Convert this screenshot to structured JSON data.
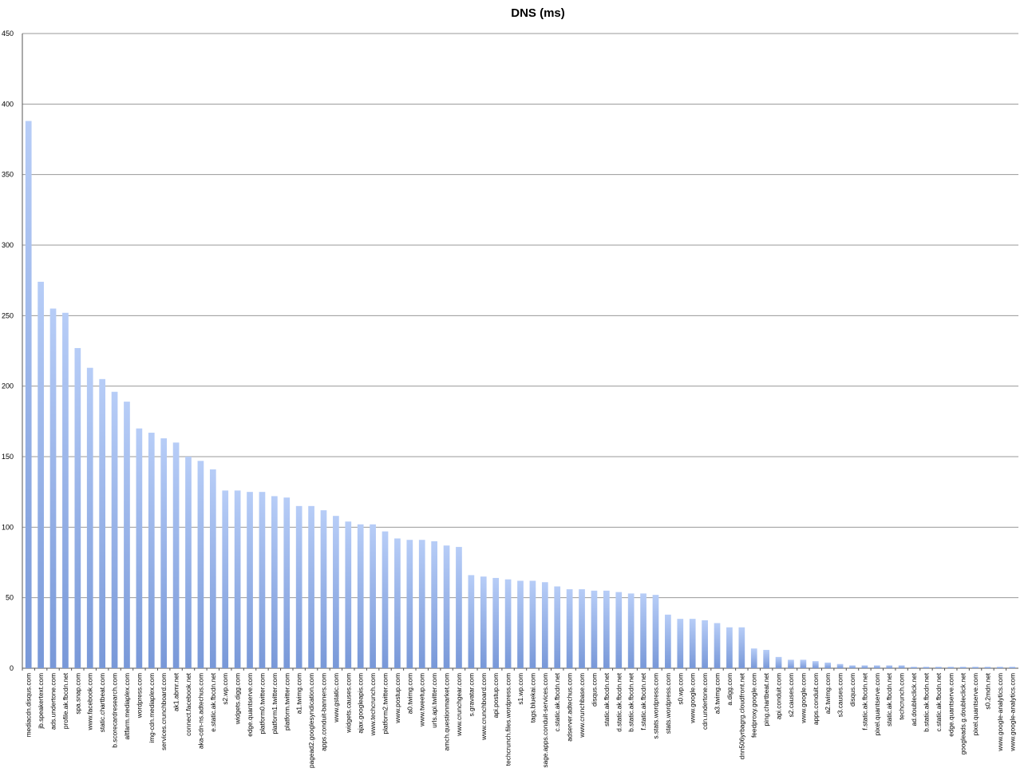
{
  "chart_data": {
    "type": "bar",
    "title": "DNS (ms)",
    "xlabel": "",
    "ylabel": "",
    "ylim": [
      0,
      450
    ],
    "yticks": [
      0,
      50,
      100,
      150,
      200,
      250,
      300,
      350,
      400,
      450
    ],
    "grid": true,
    "legend": "none",
    "bar_color_top": "#b7cdf7",
    "bar_color_bottom": "#7898d8",
    "grid_color": "#9a9a9a",
    "categories": [
      "mediacdn.disqus.com",
      "jb.speakertext.com",
      "ads.undertone.com",
      "profile.ak.fbcdn.net",
      "spa.snap.com",
      "www.facebook.com",
      "static.chartbeat.com",
      "b.scorecardresearch.com",
      "altfarm.mediaplex.com",
      "wordpress.com",
      "img-cdn.mediaplex.com",
      "services.crunchboard.com",
      "ak1.abmr.net",
      "connect.facebook.net",
      "aka-cdn-ns.adtechus.com",
      "e.static.ak.fbcdn.net",
      "s2.wp.com",
      "widgets.digg.com",
      "edge.quantserve.com",
      "platform0.twitter.com",
      "platform1.twitter.com",
      "platform.twitter.com",
      "a1.twimg.com",
      "pagead2.googlesyndication.com",
      "apps.conduit-banners.com",
      "www.gstatic.com",
      "widgets.causes.com",
      "ajax.googleapis.com",
      "www.techcrunch.com",
      "platform2.twitter.com",
      "www.postup.com",
      "a0.twimg.com",
      "www.tweetup.com",
      "urls.api.twitter.com",
      "amch.questionmarket.com",
      "www.crunchgear.com",
      "s.gravatar.com",
      "www.crunchboard.com",
      "api.postup.com",
      "techcrunch.files.wordpress.com",
      "s1.wp.com",
      "tags.bluekai.com",
      "sage.apps.conduit-services.com",
      "c.static.ak.fbcdn.net",
      "adserver.adtechus.com",
      "www.crunchbase.com",
      "disqus.com",
      "static.ak.fbcdn.net",
      "d.static.ak.fbcdn.net",
      "b.static.ak.fbcdn.net",
      "f.static.ak.fbcdn.net",
      "s.stats.wordpress.com",
      "stats.wordpress.com",
      "s0.wp.com",
      "www.google.com",
      "cdn.undertone.com",
      "a3.twimg.com",
      "a.digg.com",
      "dnn506yrbagrg.cloudfront.net",
      "feedproxy.google.com",
      "ping.chartbeat.net",
      "api.conduit.com",
      "s2.causes.com",
      "www.google.com",
      "apps.conduit.com",
      "a2.twimg.com",
      "s3.causes.com",
      "disqus.com",
      "f.static.ak.fbcdn.net",
      "pixel.quantserve.com",
      "static.ak.fbcdn.net",
      "techcrunch.com",
      "ad.doubleclick.net",
      "b.static.ak.fbcdn.net",
      "c.static.ak.fbcdn.net",
      "edge.quantserve.com",
      "googleads.g.doubleclick.net",
      "pixel.quantserve.com",
      "s0.2mdn.net",
      "www.google-analytics.com",
      "www.google-analytics.com"
    ],
    "values": [
      388,
      274,
      255,
      252,
      227,
      213,
      205,
      196,
      189,
      170,
      167,
      163,
      160,
      150,
      147,
      141,
      126,
      126,
      125,
      125,
      122,
      121,
      115,
      115,
      112,
      108,
      104,
      102,
      102,
      97,
      92,
      91,
      91,
      90,
      87,
      86,
      66,
      65,
      64,
      63,
      62,
      62,
      61,
      58,
      56,
      56,
      55,
      55,
      54,
      53,
      53,
      52,
      38,
      35,
      35,
      34,
      32,
      29,
      29,
      14,
      13,
      8,
      6,
      6,
      5,
      4,
      3,
      2,
      2,
      2,
      2,
      2,
      1,
      1,
      1,
      1,
      1,
      1,
      1,
      1,
      1
    ]
  }
}
